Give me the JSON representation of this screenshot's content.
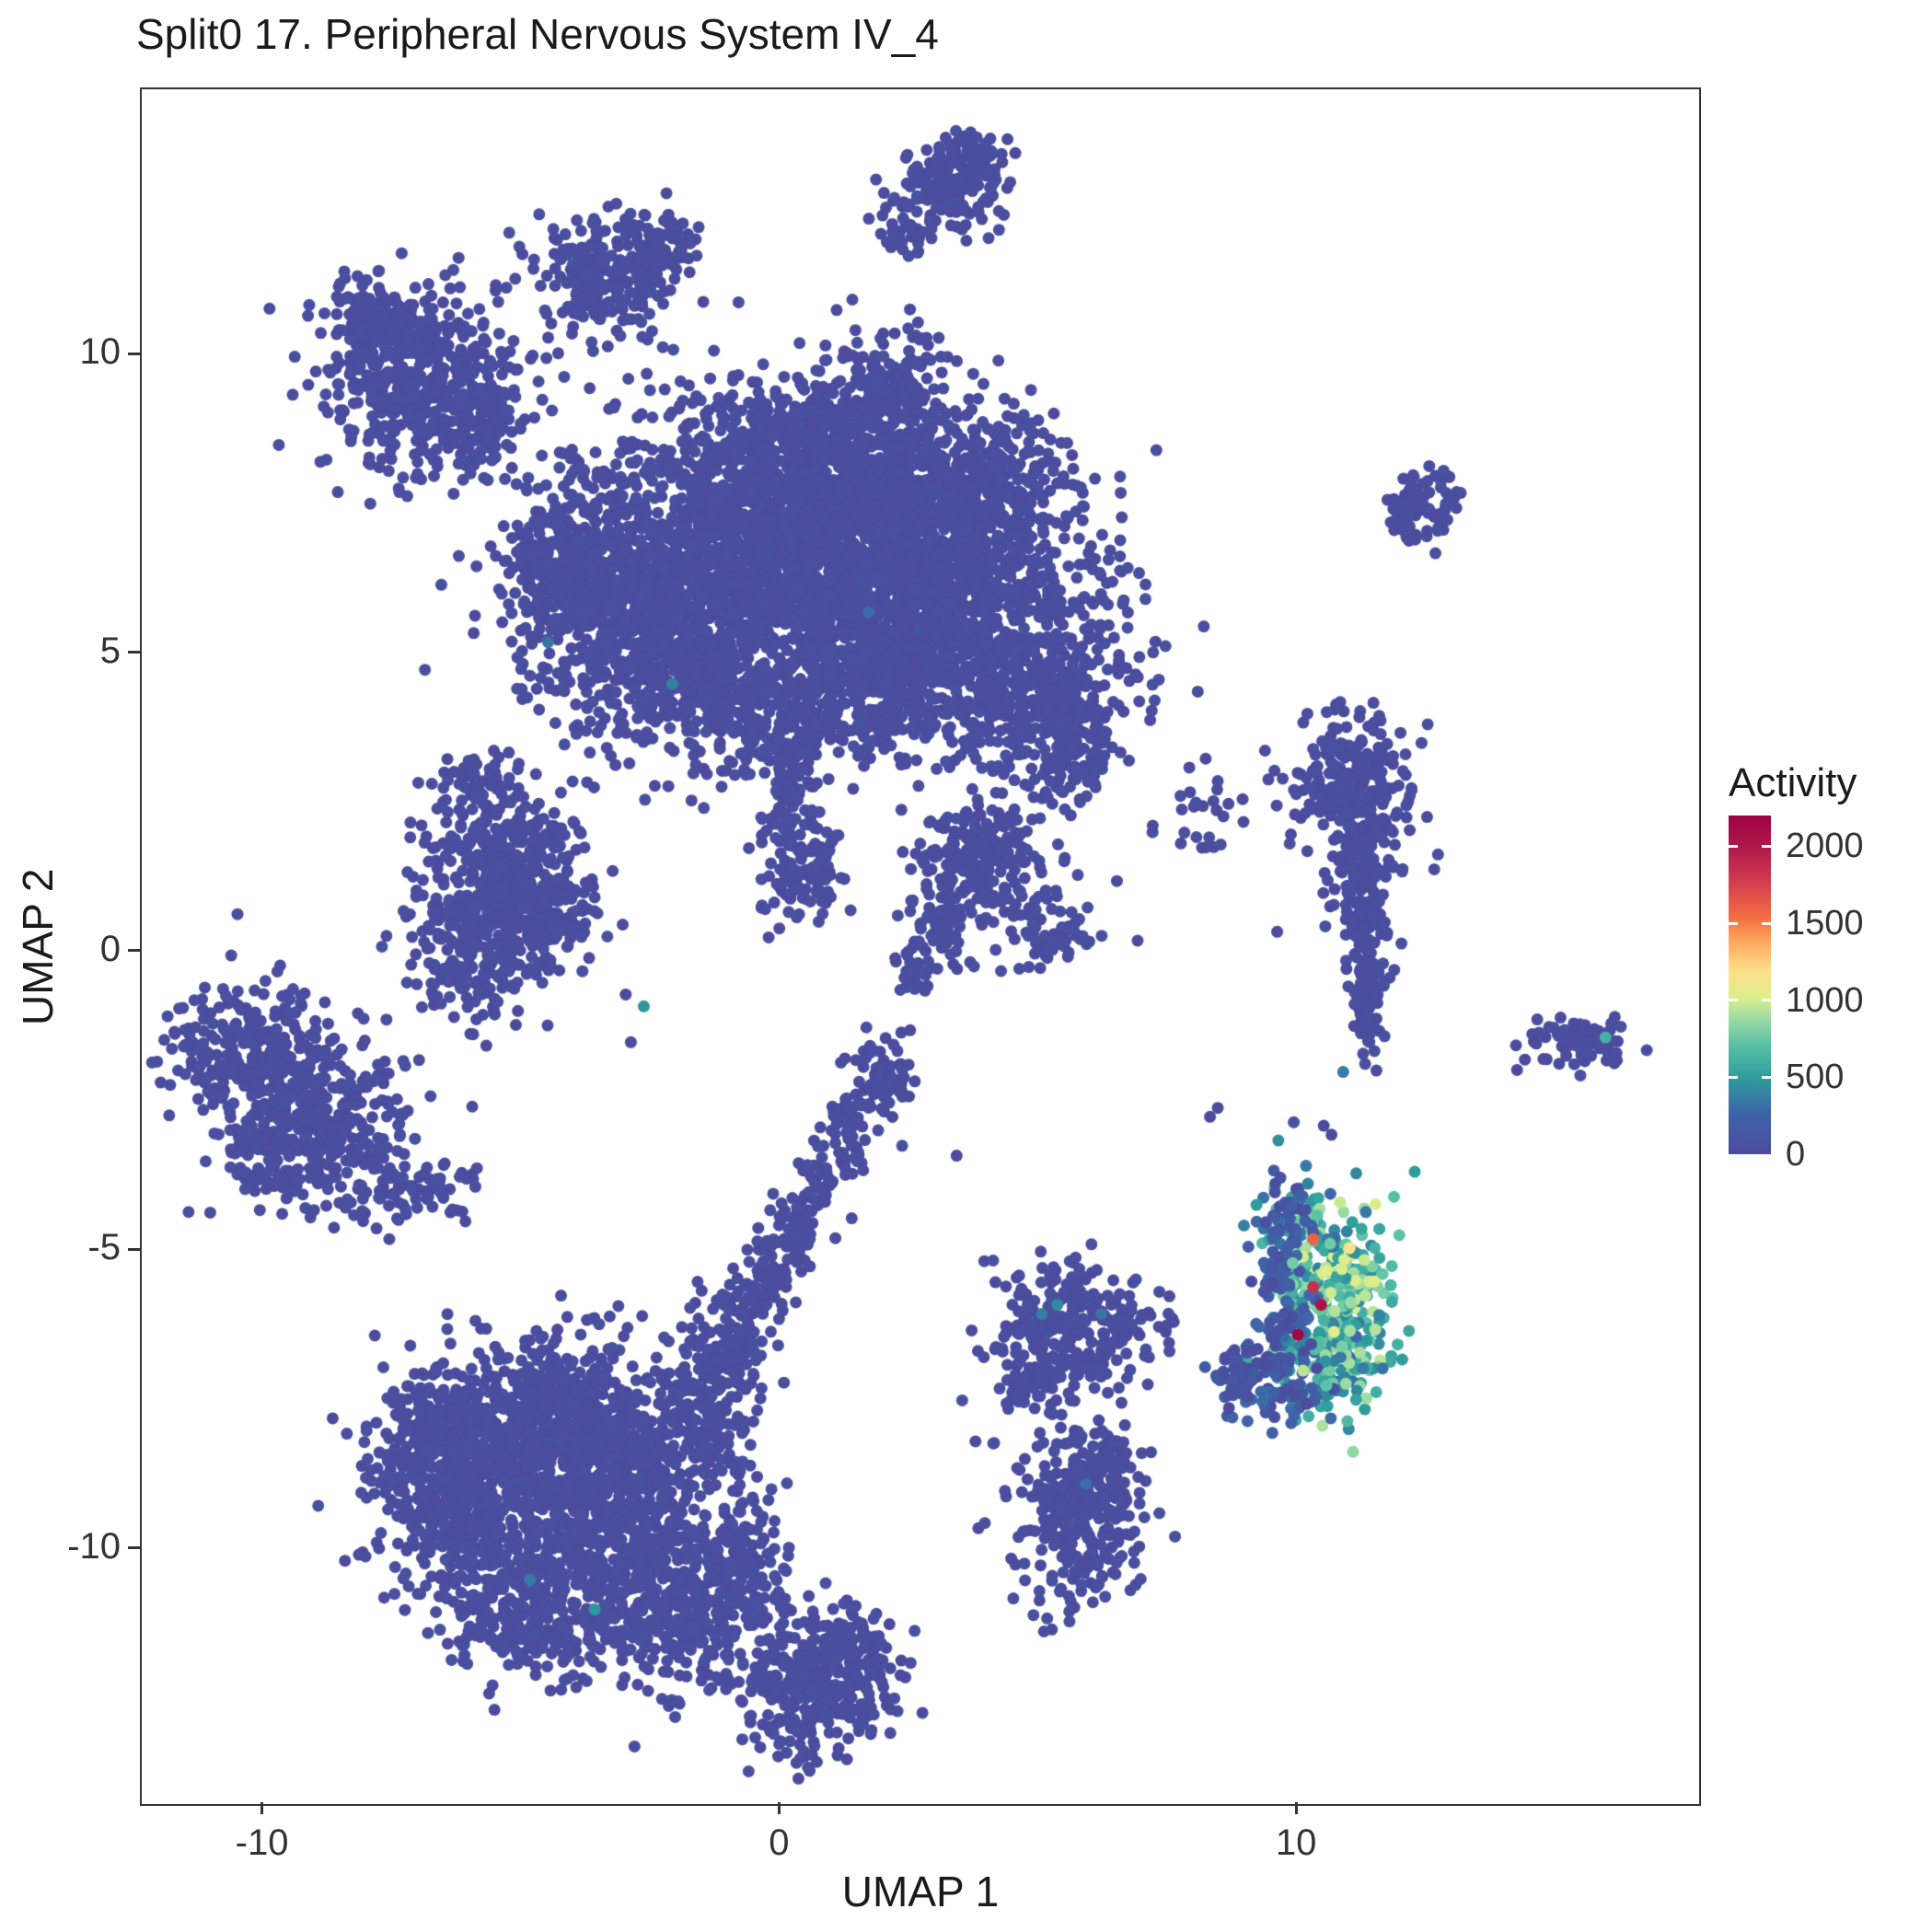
{
  "chart_data": {
    "type": "scatter",
    "title": "Split0 17. Peripheral Nervous System IV_4",
    "xlabel": "UMAP 1",
    "ylabel": "UMAP 2",
    "xlim": [
      -12.36,
      17.76
    ],
    "ylim": [
      -14.26,
      14.46
    ],
    "xticks": [
      -10,
      0,
      10
    ],
    "yticks": [
      -10,
      -5,
      0,
      5,
      10
    ],
    "grid": false,
    "point_radius": 6.5,
    "legend": {
      "title": "Activity",
      "ticks": [
        0,
        500,
        1000,
        1500,
        2000
      ],
      "vmin": 0,
      "vmax": 2200,
      "position": "right"
    },
    "colormap": [
      [
        0.0,
        "#4C4B9D"
      ],
      [
        0.12,
        "#3E64A8"
      ],
      [
        0.22,
        "#2D9A9C"
      ],
      [
        0.32,
        "#56C0A5"
      ],
      [
        0.4,
        "#9CDBA4"
      ],
      [
        0.46,
        "#D9EF8B"
      ],
      [
        0.54,
        "#FEE08B"
      ],
      [
        0.62,
        "#FDAE61"
      ],
      [
        0.7,
        "#F46D43"
      ],
      [
        0.8,
        "#D53E4F"
      ],
      [
        0.9,
        "#B11A4B"
      ],
      [
        1.0,
        "#9E0142"
      ]
    ],
    "cluster_format": [
      "cx",
      "cy",
      "sx",
      "sy",
      "n",
      "activity_min",
      "activity_max"
    ],
    "clusters": [
      [
        3.3,
        12.8,
        0.5,
        0.45,
        150
      ],
      [
        3.9,
        13.3,
        0.3,
        0.22,
        40
      ],
      [
        2.45,
        12.2,
        0.25,
        0.25,
        30
      ],
      [
        -3.4,
        11.3,
        0.75,
        0.5,
        240
      ],
      [
        -2.3,
        11.9,
        0.35,
        0.3,
        60
      ],
      [
        -6.9,
        9.7,
        0.95,
        0.8,
        520
      ],
      [
        -7.9,
        10.6,
        0.45,
        0.4,
        100
      ],
      [
        -5.9,
        8.8,
        0.4,
        0.4,
        90
      ],
      [
        0.2,
        6.8,
        2.0,
        1.2,
        2000
      ],
      [
        2.8,
        5.9,
        1.6,
        1.15,
        1300
      ],
      [
        -2.6,
        5.6,
        1.2,
        1.0,
        750
      ],
      [
        0.8,
        8.5,
        1.4,
        0.6,
        420
      ],
      [
        2.1,
        9.7,
        0.5,
        0.45,
        120
      ],
      [
        -3.9,
        6.6,
        0.6,
        0.8,
        200
      ],
      [
        4.9,
        4.4,
        0.9,
        0.8,
        330
      ],
      [
        5.6,
        3.4,
        0.5,
        0.5,
        110
      ],
      [
        -0.3,
        3.9,
        0.9,
        0.5,
        200
      ],
      [
        1.9,
        4.3,
        0.8,
        0.5,
        180
      ],
      [
        3.9,
        7.8,
        0.8,
        0.7,
        280
      ],
      [
        -4.7,
        6.4,
        0.35,
        0.45,
        70
      ],
      [
        -1.6,
        4.6,
        0.6,
        0.5,
        140
      ],
      [
        12.5,
        7.5,
        0.35,
        0.3,
        80
      ],
      [
        -5.3,
        1.6,
        0.75,
        0.65,
        320
      ],
      [
        -5.8,
        0.1,
        0.7,
        0.6,
        240
      ],
      [
        -4.5,
        0.6,
        0.5,
        0.5,
        130
      ],
      [
        -5.9,
        2.9,
        0.3,
        0.3,
        40
      ],
      [
        0.4,
        1.5,
        0.5,
        0.45,
        140
      ],
      [
        0.15,
        2.8,
        0.2,
        0.55,
        70
      ],
      [
        3.9,
        1.5,
        0.6,
        0.55,
        220
      ],
      [
        3.1,
        0.5,
        0.3,
        0.4,
        60
      ],
      [
        2.6,
        -0.3,
        0.22,
        0.28,
        30
      ],
      [
        5.3,
        0.4,
        0.45,
        0.35,
        70
      ],
      [
        8.1,
        2.3,
        0.4,
        0.4,
        25
      ],
      [
        -10.2,
        -1.7,
        0.75,
        0.6,
        300
      ],
      [
        -8.8,
        -2.9,
        0.85,
        0.7,
        320
      ],
      [
        -7.1,
        -3.9,
        0.55,
        0.25,
        70
      ],
      [
        -9.9,
        -3.3,
        0.4,
        0.35,
        80
      ],
      [
        11.0,
        2.9,
        0.6,
        0.55,
        200
      ],
      [
        11.2,
        1.6,
        0.4,
        0.7,
        150
      ],
      [
        11.35,
        0.2,
        0.25,
        0.7,
        90
      ],
      [
        11.4,
        -1.0,
        0.15,
        0.5,
        45
      ],
      [
        15.4,
        -1.5,
        0.5,
        0.22,
        90
      ],
      [
        5.7,
        -6.3,
        0.75,
        0.55,
        300
      ],
      [
        4.8,
        -7.2,
        0.35,
        0.3,
        60
      ],
      [
        5.7,
        -9.4,
        0.6,
        0.75,
        300
      ],
      [
        6.3,
        -8.6,
        0.3,
        0.3,
        50
      ],
      [
        -4.4,
        -7.9,
        1.2,
        0.75,
        650
      ],
      [
        -6.1,
        -9.1,
        0.9,
        0.8,
        450
      ],
      [
        -3.3,
        -9.3,
        1.0,
        0.9,
        600
      ],
      [
        -4.9,
        -10.9,
        0.85,
        0.65,
        350
      ],
      [
        -2.1,
        -11.1,
        0.8,
        0.65,
        300
      ],
      [
        -1.4,
        -7.5,
        0.55,
        0.8,
        220
      ],
      [
        -6.9,
        -8.0,
        0.5,
        0.5,
        120
      ],
      [
        -0.8,
        -10.3,
        0.45,
        0.7,
        150
      ],
      [
        0.6,
        -12.3,
        0.75,
        0.6,
        320
      ],
      [
        1.4,
        -11.6,
        0.4,
        0.4,
        80
      ],
      [
        1.3,
        -3.0,
        0.25,
        0.35,
        50
      ],
      [
        0.8,
        -3.8,
        0.2,
        0.35,
        45
      ],
      [
        0.3,
        -4.6,
        0.25,
        0.4,
        55
      ],
      [
        -0.2,
        -5.4,
        0.25,
        0.4,
        60
      ],
      [
        -0.8,
        -6.2,
        0.3,
        0.45,
        70
      ],
      [
        2.0,
        -2.2,
        0.3,
        0.35,
        70
      ],
      [
        10.0,
        -4.6,
        0.35,
        0.45,
        60,
        200,
        700
      ],
      [
        10.35,
        -5.6,
        0.45,
        0.75,
        130,
        250,
        1050
      ],
      [
        11.05,
        -5.9,
        0.45,
        0.85,
        140,
        350,
        1050
      ],
      [
        10.5,
        -6.9,
        0.55,
        0.45,
        110,
        250,
        900
      ],
      [
        9.7,
        -5.6,
        0.3,
        0.8,
        80,
        0,
        300
      ],
      [
        9.35,
        -7.3,
        0.5,
        0.3,
        70,
        0,
        350
      ],
      [
        8.85,
        -7.0,
        0.3,
        0.25,
        40,
        0,
        150
      ],
      [
        9.8,
        -4.35,
        0.25,
        0.3,
        30,
        0,
        250
      ]
    ],
    "extra_point_format": [
      "x",
      "y",
      "activity"
    ],
    "extra_points": [
      [
        2.05,
        11.9,
        0
      ],
      [
        -4.5,
        10.3,
        0
      ],
      [
        -4.8,
        10.0,
        0
      ],
      [
        -1.5,
        10.9,
        0
      ],
      [
        3.4,
        -3.4,
        0
      ],
      [
        8.3,
        -2.75,
        0
      ],
      [
        8.45,
        -2.6,
        0
      ],
      [
        6.9,
        0.2,
        0
      ],
      [
        9.6,
        0.35,
        0
      ],
      [
        10.5,
        -2.9,
        0
      ],
      [
        10.65,
        -3.05,
        0
      ],
      [
        -6.35,
        -4.3,
        0
      ],
      [
        -6.1,
        -4.5,
        0
      ],
      [
        -3.0,
        -0.7,
        0
      ],
      [
        -2.9,
        -1.5,
        0
      ],
      [
        12.15,
        6.9,
        0
      ],
      [
        1.45,
        -1.8,
        0
      ],
      [
        2.5,
        -1.3,
        0
      ],
      [
        7.9,
        3.1,
        0
      ],
      [
        6.5,
        1.2,
        0
      ],
      [
        -2.65,
        -0.9,
        470
      ],
      [
        15.95,
        -1.42,
        620
      ],
      [
        -3.6,
        -11.0,
        480
      ],
      [
        5.35,
        -5.9,
        420
      ],
      [
        5.05,
        -6.05,
        360
      ],
      [
        6.2,
        -6.05,
        330
      ],
      [
        -4.5,
        5.2,
        330
      ],
      [
        -2.1,
        4.5,
        380
      ],
      [
        1.7,
        5.7,
        300
      ],
      [
        5.9,
        -8.9,
        300
      ],
      [
        -4.85,
        -10.5,
        350
      ]
    ],
    "highlight_points": [
      [
        10.3,
        -4.8,
        1600
      ],
      [
        10.3,
        -5.6,
        1850
      ],
      [
        10.0,
        -6.4,
        2150
      ],
      [
        10.45,
        -5.9,
        2050
      ],
      [
        11.0,
        -4.95,
        1150
      ],
      [
        10.85,
        -5.3,
        1000
      ],
      [
        11.3,
        -5.75,
        950
      ],
      [
        10.7,
        -6.35,
        1050
      ],
      [
        11.2,
        -6.7,
        900
      ],
      [
        10.1,
        -7.0,
        950
      ],
      [
        9.9,
        -5.2,
        780
      ],
      [
        10.55,
        -7.25,
        720
      ]
    ]
  }
}
